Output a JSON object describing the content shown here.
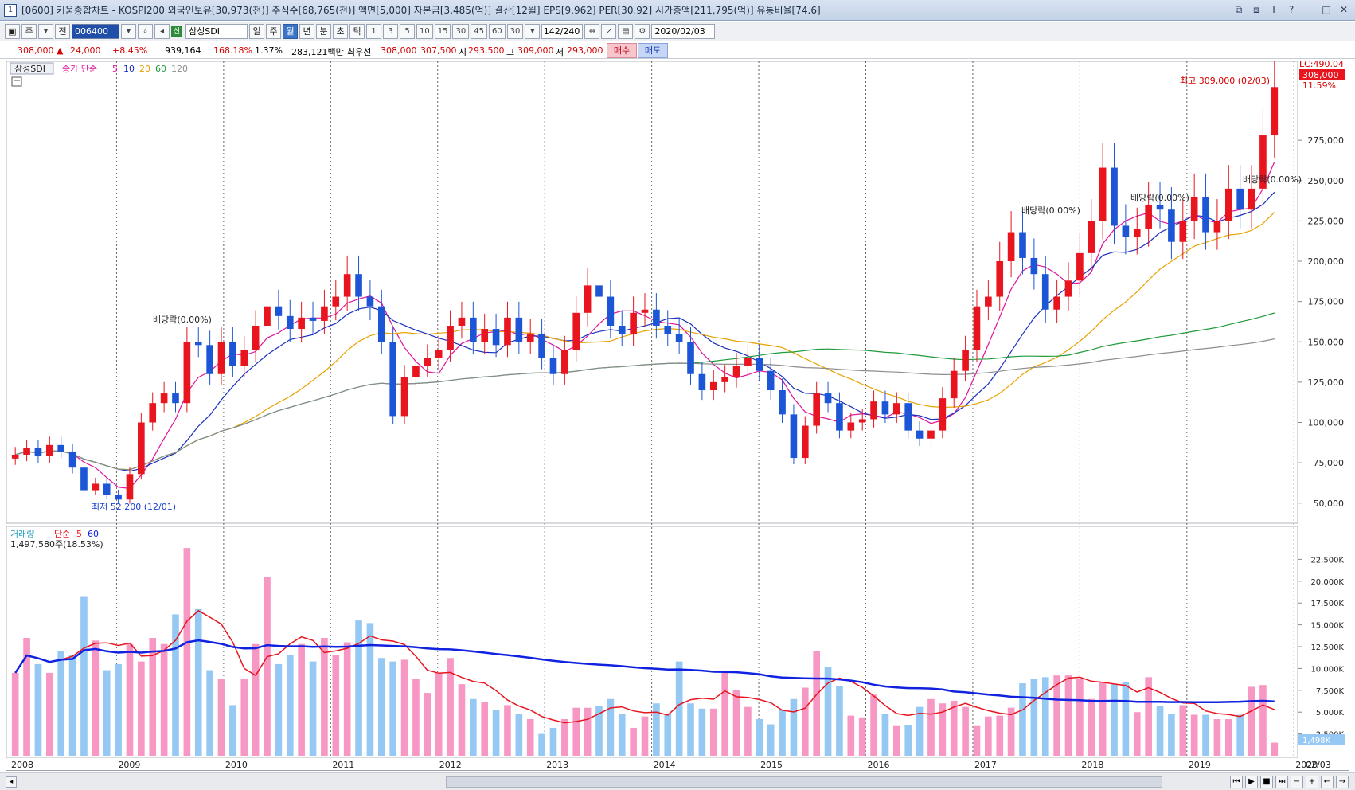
{
  "window": {
    "num": "1",
    "title": "[0600] 키움종합차트 - KOSPI200 외국인보유[30,973(천)] 주식수[68,765(천)] 액면[5,000] 자본금[3,485(억)] 결산[12월] EPS[9,962] PER[30.92] 시가총액[211,795(억)] 유통비율[74.6]",
    "buttons": [
      "⧉",
      "⧈",
      "T",
      "?",
      "—",
      "□",
      "✕"
    ]
  },
  "toolbar": {
    "chart_type": "주",
    "jeon": "전",
    "code": "006400",
    "sin": "신",
    "stock_name": "삼성SDI",
    "period_tabs": [
      "일",
      "주",
      "월",
      "년",
      "분",
      "초",
      "틱"
    ],
    "active_tab": "월",
    "numbers": [
      "1",
      "3",
      "5",
      "10",
      "15",
      "30",
      "45",
      "60",
      "30"
    ],
    "count": "142/240",
    "date": "2020/02/03"
  },
  "quote": {
    "price": "308,000 ▲",
    "change": "24,000",
    "pct": "+8.45%",
    "volume": "939,164",
    "vol_ratio": "168.18%",
    "turnover": "1.37%",
    "amount": "283,121백만",
    "best_label": "최우선",
    "ask": "308,000",
    "bid": "307,500",
    "open_label": "시",
    "open": "293,500",
    "high_label": "고",
    "high": "309,000",
    "low_label": "저",
    "low": "293,000",
    "buy": "매수",
    "sell": "매도"
  },
  "price_panel": {
    "stock_label": "삼성SDI",
    "legend": {
      "kind": "종가 단순",
      "ma": [
        "5",
        "10",
        "20",
        "60",
        "120"
      ]
    },
    "colors": {
      "ma5": "#e0119b",
      "ma10": "#1a2fc0",
      "ma20": "#e8a200",
      "ma60": "#1f9a3a",
      "ma120": "#8c8c8c",
      "up": "#e8141e",
      "down": "#1c55d6"
    },
    "y_ticks": [
      "50,000",
      "75,000",
      "100,000",
      "125,000",
      "150,000",
      "175,000",
      "200,000",
      "225,000",
      "250,000",
      "275,000"
    ],
    "lc_label": "LC:490.04",
    "last_price": "308,000",
    "last_pct": "11.59%",
    "high_note": "최고 309,000 (02/03)",
    "low_note": "최저 52,200 (12/01)",
    "dividend_note": "배당락(0.00%)"
  },
  "volume_panel": {
    "legend": {
      "name": "거래량",
      "kind": "단순",
      "ma": [
        "5",
        "60"
      ]
    },
    "value": "1,497,580주(18.53%)",
    "y_ticks": [
      "2,500K",
      "5,000K",
      "7,500K",
      "10,000K",
      "12,500K",
      "15,000K",
      "17,500K",
      "20,000K",
      "22,500K"
    ],
    "last_label": "1,498K",
    "colors": {
      "up": "#f797c3",
      "down": "#95c8f3",
      "ma5": "#e8141e",
      "ma60": "#1022e0"
    }
  },
  "x_labels": [
    "2008",
    "2009",
    "2010",
    "2011",
    "2012",
    "2013",
    "2014",
    "2015",
    "2016",
    "2017",
    "2018",
    "2019",
    "2020",
    "02/03"
  ],
  "chart_data": {
    "type": "candlestick",
    "period": "monthly",
    "y_range": [
      40000,
      320000
    ],
    "candles_close": [
      80000,
      84000,
      79000,
      86000,
      82000,
      72000,
      58000,
      62000,
      55000,
      52200,
      68000,
      100000,
      112000,
      118000,
      112000,
      150000,
      148000,
      130000,
      150000,
      135000,
      145000,
      160000,
      172000,
      166000,
      158000,
      165000,
      163000,
      172000,
      178000,
      192000,
      178000,
      172000,
      150000,
      104000,
      128000,
      135000,
      140000,
      145000,
      160000,
      165000,
      150000,
      158000,
      148000,
      165000,
      150000,
      155000,
      140000,
      130000,
      145000,
      168000,
      185000,
      178000,
      160000,
      155000,
      168000,
      170000,
      160000,
      155000,
      150000,
      130000,
      120000,
      125000,
      128000,
      135000,
      140000,
      132000,
      120000,
      105000,
      78000,
      98000,
      118000,
      112000,
      95000,
      100000,
      102000,
      113000,
      105000,
      112000,
      95000,
      90000,
      95000,
      115000,
      132000,
      145000,
      172000,
      178000,
      200000,
      218000,
      202000,
      192000,
      170000,
      178000,
      188000,
      205000,
      225000,
      258000,
      222000,
      215000,
      220000,
      235000,
      232000,
      212000,
      225000,
      240000,
      218000,
      225000,
      245000,
      232000,
      245000,
      278000,
      308000
    ],
    "volume_k": [
      9500,
      13500,
      10500,
      9500,
      12000,
      11500,
      18200,
      13200,
      9800,
      10500,
      12800,
      10800,
      13500,
      12800,
      16200,
      23800,
      16800,
      9800,
      8800,
      5800,
      8800,
      12800,
      20500,
      10500,
      11500,
      12800,
      10800,
      13500,
      11500,
      13000,
      15500,
      15200,
      11200,
      10800,
      11000,
      8800,
      7200,
      9500,
      11200,
      8200,
      6500,
      6200,
      5200,
      5800,
      4800,
      4200,
      2500,
      3200,
      4200,
      5500,
      5500,
      5700,
      6500,
      4800,
      3200,
      4500,
      6000,
      4800,
      10800,
      6000,
      5400,
      5400,
      9500,
      7500,
      5600,
      4200,
      3600,
      5200,
      6500,
      7800,
      12000,
      10200,
      8000,
      4600,
      4400,
      7000,
      4800,
      3400,
      3500,
      5600,
      6500,
      6000,
      6300,
      5600,
      3400,
      4500,
      4600,
      5500,
      8300,
      8800,
      9000,
      9200,
      9200,
      8800,
      6500,
      8400,
      8200,
      8400,
      5000,
      9000,
      5700,
      4800,
      5800,
      4700,
      4700,
      4200,
      4200,
      4700,
      7900,
      8100,
      1498
    ]
  }
}
